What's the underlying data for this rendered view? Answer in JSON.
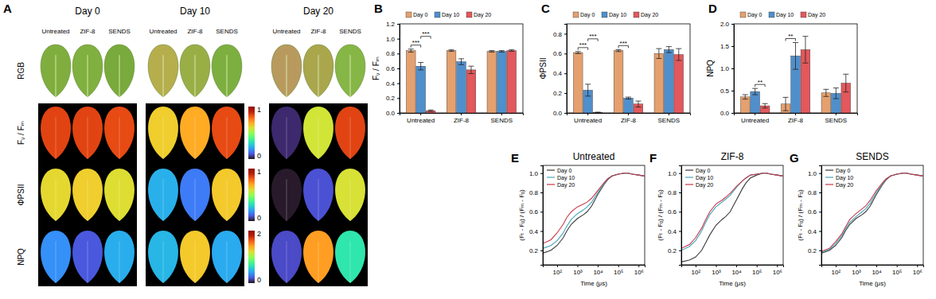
{
  "chart_data": [
    {
      "type": "image_grid",
      "panel_label": "A",
      "columns": [
        "Day 0",
        "Day 10",
        "Day 20"
      ],
      "subcolumns": [
        "Untreated",
        "ZIF-8",
        "SENDS"
      ],
      "rows": [
        "RGB",
        "Fᵥ / Fₘ",
        "ΦPSII",
        "NPQ"
      ],
      "colorbars": [
        {
          "range": [
            0,
            1
          ],
          "ticks": [
            0,
            1
          ]
        },
        {
          "range": [
            0,
            1
          ],
          "ticks": [
            0,
            1
          ]
        },
        {
          "range": [
            0,
            2
          ],
          "ticks": [
            0,
            2
          ]
        }
      ]
    },
    {
      "type": "bar",
      "panel_label": "B",
      "y_label": "Fᵥ / Fₘ",
      "categories": [
        "Untreated",
        "ZIF-8",
        "SENDS"
      ],
      "series": [
        {
          "name": "Day 0",
          "color": "#E4A06F",
          "values": [
            0.84,
            0.84,
            0.83
          ],
          "errors": [
            0.02,
            0.01,
            0.01
          ]
        },
        {
          "name": "Day 10",
          "color": "#4F8FCB",
          "values": [
            0.63,
            0.69,
            0.83
          ],
          "errors": [
            0.05,
            0.04,
            0.01
          ]
        },
        {
          "name": "Day 20",
          "color": "#E2585C",
          "values": [
            0.03,
            0.58,
            0.84
          ],
          "errors": [
            0.01,
            0.05,
            0.01
          ]
        }
      ],
      "ylim": [
        0,
        1.2
      ],
      "yticks": [
        {
          "value": 0,
          "label": "0.0"
        },
        0.2,
        0.4,
        0.6,
        0.8,
        {
          "value": 1,
          "label": "1.0"
        },
        1.2
      ],
      "legend": "top",
      "annotations": [
        {
          "category": "Untreated",
          "from": "Day 0",
          "to": "Day 10",
          "label": "***"
        },
        {
          "category": "Untreated",
          "from": "Day 10",
          "to": "Day 20",
          "label": "***"
        }
      ]
    },
    {
      "type": "bar",
      "panel_label": "C",
      "y_label": "ΦPSII",
      "categories": [
        "Untreated",
        "ZIF-8",
        "SENDS"
      ],
      "series": [
        {
          "name": "Day 0",
          "color": "#E4A06F",
          "values": [
            0.61,
            0.63,
            0.6
          ],
          "errors": [
            0.01,
            0.01,
            0.05
          ]
        },
        {
          "name": "Day 10",
          "color": "#4F8FCB",
          "values": [
            0.23,
            0.15,
            0.64
          ],
          "errors": [
            0.06,
            0.01,
            0.03
          ]
        },
        {
          "name": "Day 20",
          "color": "#E2585C",
          "values": [
            0.005,
            0.09,
            0.59
          ],
          "errors": [
            0.003,
            0.03,
            0.06
          ]
        }
      ],
      "ylim": [
        0,
        0.9
      ],
      "yticks": [
        {
          "value": 0,
          "label": "0.0"
        },
        0.2,
        0.4,
        0.6,
        0.8
      ],
      "legend": "top",
      "annotations": [
        {
          "category": "Untreated",
          "from": "Day 0",
          "to": "Day 10",
          "label": "***"
        },
        {
          "category": "Untreated",
          "from": "Day 10",
          "to": "Day 20",
          "label": "***"
        },
        {
          "category": "ZIF-8",
          "from": "Day 0",
          "to": "Day 10",
          "label": "***"
        }
      ]
    },
    {
      "type": "bar",
      "panel_label": "D",
      "y_label": "NPQ",
      "categories": [
        "Untreated",
        "ZIF-8",
        "SENDS"
      ],
      "series": [
        {
          "name": "Day 0",
          "color": "#E4A06F",
          "values": [
            0.36,
            0.2,
            0.45
          ],
          "errors": [
            0.05,
            0.15,
            0.08
          ]
        },
        {
          "name": "Day 10",
          "color": "#4F8FCB",
          "values": [
            0.48,
            1.28,
            0.44
          ],
          "errors": [
            0.07,
            0.3,
            0.12
          ]
        },
        {
          "name": "Day 20",
          "color": "#E2585C",
          "values": [
            0.16,
            1.42,
            0.67
          ],
          "errors": [
            0.05,
            0.3,
            0.2
          ]
        }
      ],
      "ylim": [
        0,
        2
      ],
      "yticks": [
        {
          "value": 0,
          "label": "0.0"
        },
        0.5,
        {
          "value": 1,
          "label": "1.0"
        },
        1.5,
        {
          "value": 2,
          "label": "2.0"
        }
      ],
      "legend": "top",
      "annotations": [
        {
          "category": "Untreated",
          "from": "Day 10",
          "to": "Day 20",
          "label": "**"
        },
        {
          "category": "ZIF-8",
          "from": "Day 0",
          "to": "Day 10",
          "label": "**"
        }
      ]
    },
    {
      "type": "line",
      "panel_label": "E",
      "title": "Untreated",
      "x_label": "Time (μs)",
      "y_label": "(Fₜ - Fₒ) / (Fₘ - Fₒ)",
      "x": [
        20,
        50,
        100,
        200,
        300,
        500,
        1000,
        2000,
        3000,
        5000,
        10000,
        20000,
        30000,
        50000,
        100000,
        200000,
        300000,
        500000,
        1000000,
        2000000
      ],
      "series": [
        {
          "name": "Day 0",
          "color": "#3a3a3a",
          "values": [
            0.17,
            0.2,
            0.25,
            0.33,
            0.4,
            0.47,
            0.53,
            0.57,
            0.6,
            0.66,
            0.78,
            0.88,
            0.93,
            0.97,
            0.99,
            1.0,
            1.0,
            0.99,
            0.98,
            0.97
          ]
        },
        {
          "name": "Day 10",
          "color": "#45A5B8",
          "values": [
            0.22,
            0.25,
            0.3,
            0.38,
            0.45,
            0.52,
            0.58,
            0.62,
            0.65,
            0.7,
            0.8,
            0.89,
            0.94,
            0.97,
            0.99,
            1.0,
            1.0,
            0.99,
            0.98,
            0.97
          ]
        },
        {
          "name": "Day 20",
          "color": "#C8384A",
          "values": [
            0.27,
            0.31,
            0.38,
            0.47,
            0.54,
            0.6,
            0.65,
            0.68,
            0.7,
            0.74,
            0.82,
            0.9,
            0.94,
            0.97,
            0.99,
            1.0,
            1.0,
            0.99,
            0.98,
            0.97
          ]
        }
      ],
      "log": "x",
      "xlim": [
        20,
        2000000
      ],
      "xticks": [
        {
          "value": 100,
          "label": "10²"
        },
        {
          "value": 1000,
          "label": "10³"
        },
        {
          "value": 10000,
          "label": "10⁴"
        },
        {
          "value": 100000,
          "label": "10⁵"
        },
        {
          "value": 1000000,
          "label": "10⁶"
        }
      ],
      "ylim": [
        0.05,
        1.08
      ],
      "yticks": [
        0.2,
        0.4,
        0.6,
        0.8,
        {
          "value": 1,
          "label": "1.0"
        }
      ],
      "legend": "upper left"
    },
    {
      "type": "line",
      "panel_label": "F",
      "title": "ZIF-8",
      "x_label": "Time (μs)",
      "y_label": "(Fₜ - Fₒ) / (Fₘ - Fₒ)",
      "x": [
        20,
        50,
        100,
        200,
        300,
        500,
        1000,
        2000,
        3000,
        5000,
        10000,
        20000,
        30000,
        50000,
        100000,
        200000,
        300000,
        500000,
        1000000,
        2000000
      ],
      "series": [
        {
          "name": "Day 0",
          "color": "#3a3a3a",
          "values": [
            0.08,
            0.1,
            0.13,
            0.2,
            0.27,
            0.36,
            0.46,
            0.52,
            0.55,
            0.6,
            0.72,
            0.84,
            0.9,
            0.95,
            0.98,
            1.0,
            1.0,
            0.99,
            0.98,
            0.97
          ]
        },
        {
          "name": "Day 10",
          "color": "#45A5B8",
          "values": [
            0.2,
            0.24,
            0.3,
            0.4,
            0.48,
            0.57,
            0.65,
            0.7,
            0.73,
            0.77,
            0.85,
            0.92,
            0.95,
            0.98,
            0.99,
            1.0,
            1.0,
            0.99,
            0.98,
            0.97
          ]
        },
        {
          "name": "Day 20",
          "color": "#C8384A",
          "values": [
            0.22,
            0.26,
            0.33,
            0.43,
            0.51,
            0.6,
            0.68,
            0.72,
            0.75,
            0.79,
            0.86,
            0.92,
            0.95,
            0.98,
            0.99,
            1.0,
            1.0,
            0.99,
            0.98,
            0.97
          ]
        }
      ],
      "log": "x",
      "xlim": [
        20,
        2000000
      ],
      "xticks": [
        {
          "value": 100,
          "label": "10²"
        },
        {
          "value": 1000,
          "label": "10³"
        },
        {
          "value": 10000,
          "label": "10⁴"
        },
        {
          "value": 100000,
          "label": "10⁵"
        },
        {
          "value": 1000000,
          "label": "10⁶"
        }
      ],
      "ylim": [
        0.05,
        1.08
      ],
      "yticks": [
        0.2,
        0.4,
        0.6,
        0.8,
        {
          "value": 1,
          "label": "1.0"
        }
      ],
      "legend": "upper left"
    },
    {
      "type": "line",
      "panel_label": "G",
      "title": "SENDS",
      "x_label": "Time (μs)",
      "y_label": "(Fₜ - Fₒ) / (Fₘ - Fₒ)",
      "x": [
        20,
        50,
        100,
        200,
        300,
        500,
        1000,
        2000,
        3000,
        5000,
        10000,
        20000,
        30000,
        50000,
        100000,
        200000,
        300000,
        500000,
        1000000,
        2000000
      ],
      "series": [
        {
          "name": "Day 0",
          "color": "#3a3a3a",
          "values": [
            0.17,
            0.2,
            0.25,
            0.33,
            0.4,
            0.47,
            0.53,
            0.57,
            0.6,
            0.66,
            0.78,
            0.88,
            0.93,
            0.97,
            0.99,
            1.0,
            1.0,
            0.99,
            0.98,
            0.97
          ]
        },
        {
          "name": "Day 10",
          "color": "#45A5B8",
          "values": [
            0.18,
            0.21,
            0.27,
            0.35,
            0.42,
            0.49,
            0.55,
            0.6,
            0.63,
            0.69,
            0.8,
            0.89,
            0.94,
            0.97,
            0.99,
            1.0,
            1.0,
            0.99,
            0.98,
            0.97
          ]
        },
        {
          "name": "Day 20",
          "color": "#C8384A",
          "values": [
            0.19,
            0.22,
            0.29,
            0.37,
            0.44,
            0.52,
            0.58,
            0.63,
            0.66,
            0.72,
            0.82,
            0.9,
            0.94,
            0.97,
            0.99,
            1.0,
            1.0,
            0.99,
            0.98,
            0.97
          ]
        }
      ],
      "log": "x",
      "xlim": [
        20,
        2000000
      ],
      "xticks": [
        {
          "value": 100,
          "label": "10²"
        },
        {
          "value": 1000,
          "label": "10³"
        },
        {
          "value": 10000,
          "label": "10⁴"
        },
        {
          "value": 100000,
          "label": "10⁵"
        },
        {
          "value": 1000000,
          "label": "10⁶"
        }
      ],
      "ylim": [
        0.05,
        1.08
      ],
      "yticks": [
        0.2,
        0.4,
        0.6,
        0.8,
        {
          "value": 1,
          "label": "1.0"
        }
      ],
      "legend": "upper left"
    }
  ]
}
